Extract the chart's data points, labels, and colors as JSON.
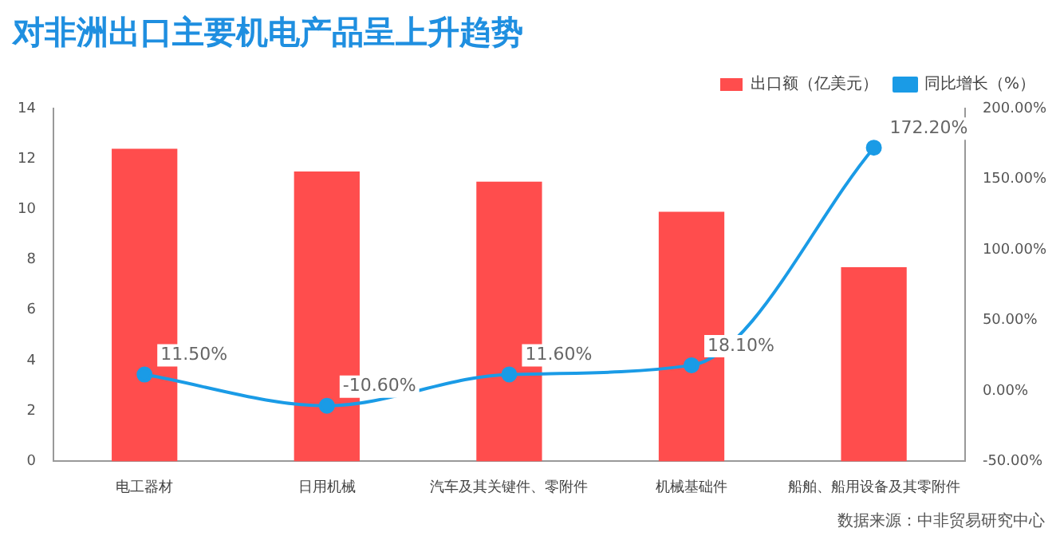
{
  "chart_data": {
    "type": "bar",
    "title": "对非洲出口主要机电产品呈上升趋势",
    "categories": [
      "电工器材",
      "日用机械",
      "汽车及其关键件、零附件",
      "机械基础件",
      "船舶、船用设备及其零附件"
    ],
    "series": [
      {
        "name": "出口额（亿美元）",
        "color": "#ff4d4d",
        "values": [
          12.4,
          11.5,
          11.1,
          9.9,
          7.7
        ]
      },
      {
        "name": "同比增长（%）",
        "type": "line",
        "axis": "y2",
        "color": "#1a9be6",
        "values": [
          11.5,
          -10.6,
          11.6,
          18.1,
          172.2
        ],
        "value_labels": [
          "11.50%",
          "-10.60%",
          "11.60%",
          "18.10%",
          "172.20%"
        ]
      }
    ],
    "ylim": [
      0,
      14
    ],
    "yticks": [
      0,
      2,
      4,
      6,
      8,
      10,
      12,
      14
    ],
    "y2lim": [
      -50,
      200
    ],
    "y2ticks": [
      {
        "value": -50,
        "label": "-50.00%"
      },
      {
        "value": 0,
        "label": "0.00%"
      },
      {
        "value": 50,
        "label": "50.00%"
      },
      {
        "value": 100,
        "label": "100.00%"
      },
      {
        "value": 150,
        "label": "150.00%"
      },
      {
        "value": 200,
        "label": "200.00%"
      }
    ],
    "grid": false,
    "legend": "top right",
    "marker": "circle",
    "annotations": [
      "数据来源：中非贸易研究中心"
    ]
  }
}
